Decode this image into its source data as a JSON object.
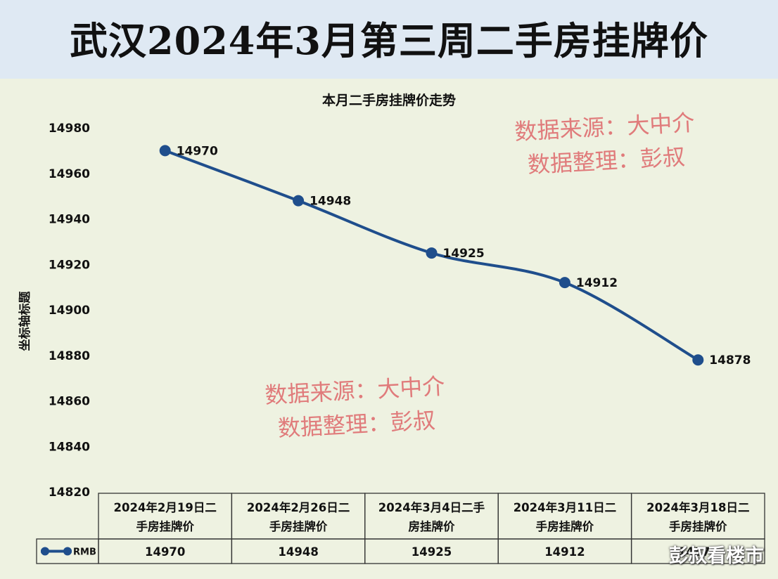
{
  "page_title": "武汉2024年3月第三周二手房挂牌价",
  "corner_mark": "彭叔看楼市",
  "watermarks": [
    [
      "数据来源：大中介",
      "数据整理：彭叔"
    ],
    [
      "数据来源：大中介",
      "数据整理：彭叔"
    ]
  ],
  "colors": {
    "line": "#1f4e8c",
    "header_bg": "#dfe9f3",
    "plot_bg": "#eef2e1",
    "watermark": "#e07b7b"
  },
  "chart_data": {
    "type": "line",
    "title": "本月二手房挂牌价走势",
    "ylabel": "坐标轴标题",
    "xlabel": "",
    "ylim": [
      14820,
      14980
    ],
    "yticks": [
      14820,
      14840,
      14860,
      14880,
      14900,
      14920,
      14940,
      14960,
      14980
    ],
    "categories": [
      "2024年2月19日二手房挂牌价",
      "2024年2月26日二手房挂牌价",
      "2024年3月4日二手房挂牌价",
      "2024年3月11日二手房挂牌价",
      "2024年3月18日二手房挂牌价"
    ],
    "category_lines": [
      [
        "2024年2月19日二",
        "手房挂牌价"
      ],
      [
        "2024年2月26日二",
        "手房挂牌价"
      ],
      [
        "2024年3月4日二手",
        "房挂牌价"
      ],
      [
        "2024年3月11日二",
        "手房挂牌价"
      ],
      [
        "2024年3月18日二",
        "手房挂牌价"
      ]
    ],
    "series": [
      {
        "name": "RMB",
        "values": [
          14970,
          14948,
          14925,
          14912,
          14878
        ]
      }
    ],
    "data_labels": [
      "14970",
      "14948",
      "14925",
      "14912",
      "14878"
    ],
    "grid": false,
    "data_table": true,
    "legend": "in-table"
  }
}
